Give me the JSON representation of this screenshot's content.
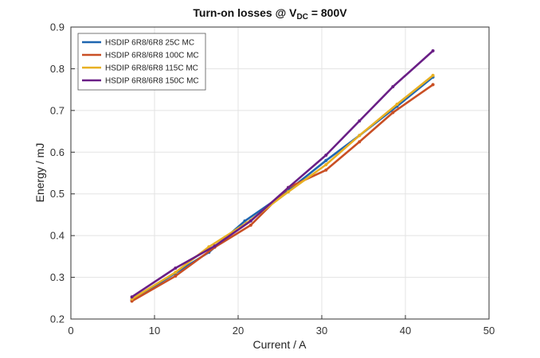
{
  "chart_data": {
    "type": "line",
    "title_main": "Turn-on losses @ V",
    "title_sub": "DC",
    "title_tail": " = 800V",
    "xlabel": "Current / A",
    "ylabel": "Energy / mJ",
    "xlim": [
      0,
      50
    ],
    "ylim": [
      0.2,
      0.9
    ],
    "xticks": [
      "0",
      "10",
      "20",
      "30",
      "40",
      "50"
    ],
    "xtick_values": [
      0,
      10,
      20,
      30,
      40,
      50
    ],
    "yticks": [
      "0.2",
      "0.3",
      "0.4",
      "0.5",
      "0.6",
      "0.7",
      "0.8",
      "0.9"
    ],
    "ytick_values": [
      0.2,
      0.3,
      0.4,
      0.5,
      0.6,
      0.7,
      0.8,
      0.9
    ],
    "grid": true,
    "legend_position": "top-left",
    "series": [
      {
        "name": "HSDIP 6R8/6R8 25C MC",
        "color": "#1f66b0",
        "points": [
          [
            7.3,
            0.245
          ],
          [
            12.5,
            0.31
          ],
          [
            16.5,
            0.36
          ],
          [
            20.8,
            0.435
          ],
          [
            25.5,
            0.5
          ],
          [
            30.5,
            0.58
          ],
          [
            34.5,
            0.64
          ],
          [
            39.0,
            0.71
          ],
          [
            43.3,
            0.78
          ]
        ]
      },
      {
        "name": "HSDIP 6R8/6R8 100C MC",
        "color": "#c94f24",
        "points": [
          [
            7.3,
            0.243
          ],
          [
            12.5,
            0.303
          ],
          [
            17.2,
            0.372
          ],
          [
            21.5,
            0.425
          ],
          [
            26.0,
            0.515
          ],
          [
            30.5,
            0.557
          ],
          [
            34.5,
            0.625
          ],
          [
            38.5,
            0.695
          ],
          [
            43.3,
            0.762
          ]
        ]
      },
      {
        "name": "HSDIP 6R8/6R8 115C MC",
        "color": "#e8b022",
        "points": [
          [
            7.3,
            0.248
          ],
          [
            12.5,
            0.312
          ],
          [
            16.5,
            0.373
          ],
          [
            21.0,
            0.43
          ],
          [
            26.0,
            0.505
          ],
          [
            30.5,
            0.57
          ],
          [
            34.5,
            0.64
          ],
          [
            39.0,
            0.715
          ],
          [
            43.3,
            0.784
          ]
        ]
      },
      {
        "name": "HSDIP 6R8/6R8 150C MC",
        "color": "#6a1f86",
        "points": [
          [
            7.3,
            0.253
          ],
          [
            12.5,
            0.322
          ],
          [
            17.2,
            0.375
          ],
          [
            21.5,
            0.435
          ],
          [
            26.0,
            0.515
          ],
          [
            30.5,
            0.593
          ],
          [
            34.5,
            0.675
          ],
          [
            38.5,
            0.757
          ],
          [
            43.3,
            0.843
          ]
        ]
      }
    ]
  }
}
